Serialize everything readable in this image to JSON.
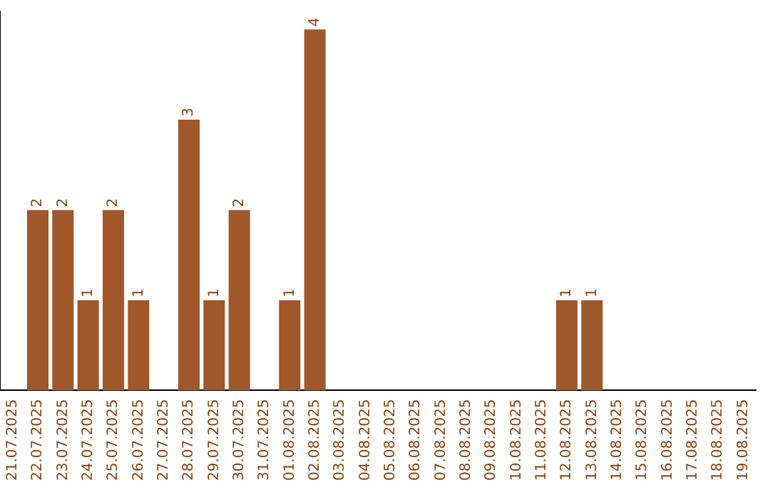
{
  "chart_data": {
    "type": "bar",
    "categories": [
      "21.07.2025",
      "22.07.2025",
      "23.07.2025",
      "24.07.2025",
      "25.07.2025",
      "26.07.2025",
      "27.07.2025",
      "28.07.2025",
      "29.07.2025",
      "30.07.2025",
      "31.07.2025",
      "01.08.2025",
      "02.08.2025",
      "03.08.2025",
      "04.08.2025",
      "05.08.2025",
      "06.08.2025",
      "07.08.2025",
      "08.08.2025",
      "09.08.2025",
      "10.08.2025",
      "11.08.2025",
      "12.08.2025",
      "13.08.2025",
      "14.08.2025",
      "15.08.2025",
      "16.08.2025",
      "17.08.2025",
      "18.08.2025",
      "19.08.2025"
    ],
    "values": [
      0,
      2,
      2,
      1,
      2,
      1,
      0,
      3,
      1,
      2,
      0,
      1,
      4,
      0,
      0,
      0,
      0,
      0,
      0,
      0,
      0,
      0,
      1,
      1,
      0,
      0,
      0,
      0,
      0,
      0
    ],
    "value_labels": [
      null,
      "2",
      "2",
      "1",
      "2",
      "1",
      null,
      "3",
      "1",
      "2",
      null,
      "1",
      "4",
      null,
      null,
      null,
      null,
      null,
      null,
      null,
      null,
      null,
      "1",
      "1",
      null,
      null,
      null,
      null,
      null,
      null
    ],
    "color": "#a0572a",
    "ylim": [
      0,
      4.2
    ],
    "tick_labels": "x",
    "grid": false,
    "legend": false
  }
}
